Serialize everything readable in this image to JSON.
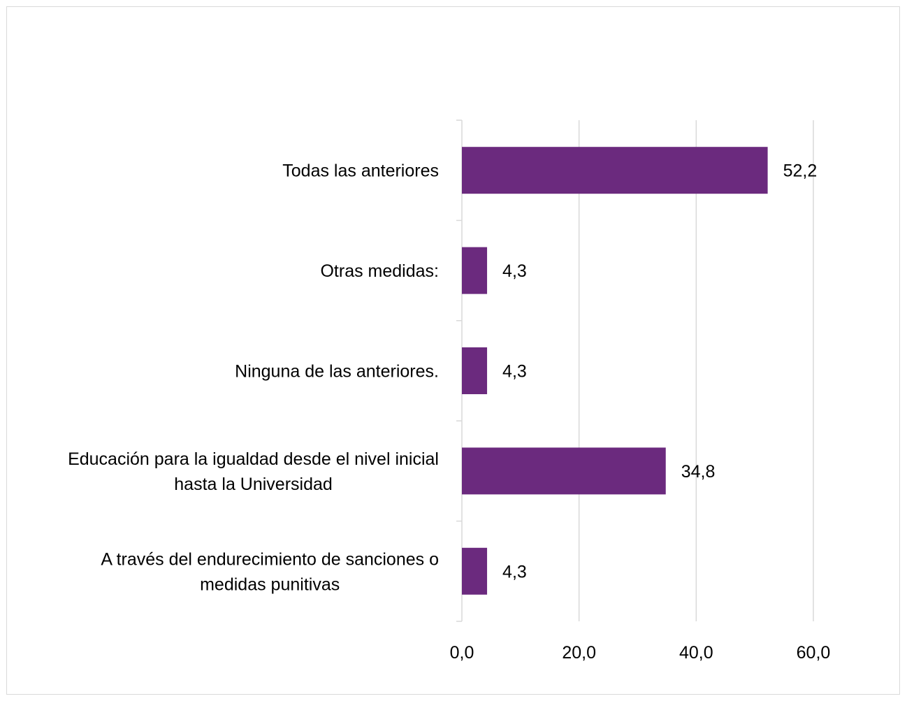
{
  "chart_data": {
    "type": "bar",
    "orientation": "horizontal",
    "categories": [
      [
        "Todas las anteriores"
      ],
      [
        "Otras medidas:"
      ],
      [
        "Ninguna de las anteriores."
      ],
      [
        "Educación para la igualdad desde el nivel inicial",
        "hasta la Universidad"
      ],
      [
        "A través del endurecimiento de sanciones o",
        "medidas punitivas"
      ]
    ],
    "values": [
      52.2,
      4.3,
      4.3,
      34.8,
      4.3
    ],
    "value_labels": [
      "52,2",
      "4,3",
      "4,3",
      "34,8",
      "4,3"
    ],
    "xlim": [
      0,
      60
    ],
    "ticks": [
      0,
      20,
      40,
      60
    ],
    "tick_labels": [
      "0,0",
      "20,0",
      "40,0",
      "60,0"
    ],
    "title": "",
    "xlabel": "",
    "ylabel": "",
    "grid": true,
    "legend": "none",
    "bar_color": "#6b2a7e",
    "grid_color": "#d9d9d9"
  }
}
